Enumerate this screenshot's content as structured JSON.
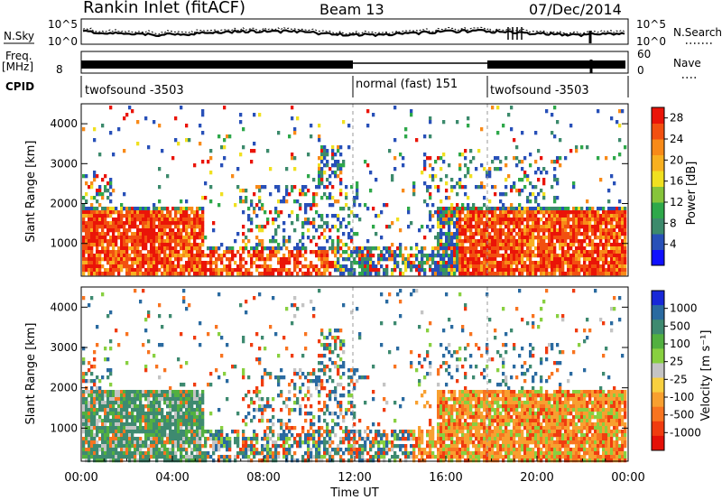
{
  "header": {
    "station": "Rankin Inlet (fitACF)",
    "beam": "Beam 13",
    "date": "07/Dec/2014"
  },
  "top_strips": {
    "nsky_label": "N.Sky",
    "nsky_ticks": [
      "10^5",
      "10^0"
    ],
    "nsearch_label": "N.Search",
    "nsearch_ticks": [
      "10^5",
      "10^0"
    ],
    "freq_label": "Freq.",
    "freq_unit": "[MHz]",
    "freq_ticks": [
      "8"
    ],
    "nave_label": "Nave",
    "nave_ticks": [
      "60",
      "0"
    ],
    "cpid_label": "CPID",
    "cpid_segments": [
      {
        "label": "twofsound -3503",
        "start_hour": 0,
        "end_hour": 12
      },
      {
        "label": "normal (fast) 151",
        "start_hour": 12,
        "end_hour": 18
      },
      {
        "label": "twofsound -3503",
        "start_hour": 18,
        "end_hour": 24
      }
    ]
  },
  "chart_data": [
    {
      "type": "heatmap",
      "name": "power-panel",
      "ylabel": "Slant Range [km]",
      "xlabel": "Time UT",
      "ylim": [
        180,
        4500
      ],
      "xlim": [
        0,
        24
      ],
      "y_ticks": [
        "1000",
        "2000",
        "3000",
        "4000"
      ],
      "colorbar_label": "Power [dB]",
      "colorbar_ticks": [
        "4",
        "8",
        "12",
        "16",
        "20",
        "24",
        "28"
      ],
      "colorbar_colors": [
        "#1010ff",
        "#2850b8",
        "#3c8a6c",
        "#2ea84a",
        "#86c43a",
        "#f0e020",
        "#f8b020",
        "#f88a18",
        "#f25010",
        "#ea1408"
      ],
      "colorbar_range": [
        0,
        30
      ]
    },
    {
      "type": "heatmap",
      "name": "velocity-panel",
      "ylabel": "Slant Range [km]",
      "xlabel": "Time UT",
      "ylim": [
        180,
        4500
      ],
      "xlim": [
        0,
        24
      ],
      "y_ticks": [
        "1000",
        "2000",
        "3000",
        "4000"
      ],
      "colorbar_label": "Velocity [m s⁻¹]",
      "colorbar_ticks": [
        "1000",
        "500",
        "100",
        "25",
        "-25",
        "-100",
        "-500",
        "-1000"
      ],
      "colorbar_colors": [
        "#1828d8",
        "#2a6aa0",
        "#3e8a70",
        "#52b040",
        "#88d040",
        "#c4c4c4",
        "#f8d040",
        "#f8a030",
        "#f87420",
        "#f03c10",
        "#e41008"
      ]
    }
  ],
  "x_axis": {
    "title": "Time UT",
    "ticks": [
      "00:00",
      "04:00",
      "08:00",
      "12:00",
      "16:00",
      "20:00",
      "00:00"
    ],
    "tick_hours": [
      0,
      4,
      8,
      12,
      16,
      20,
      24
    ]
  },
  "colors": {
    "axis": "#000000",
    "background": "#ffffff"
  }
}
